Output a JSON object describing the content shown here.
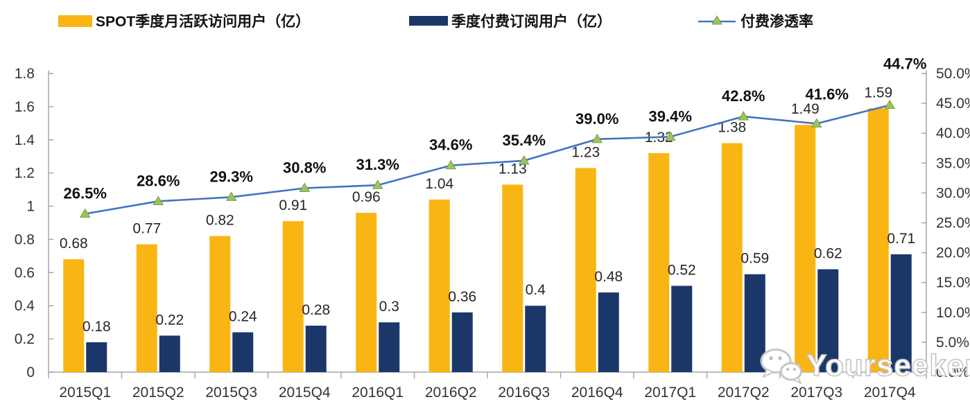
{
  "watermark": {
    "text": "Yourseeker",
    "icon": "wechat-icon"
  },
  "chart_data": {
    "type": "combo-bar-line",
    "title": "",
    "grid": false,
    "legend_position": "top",
    "categories": [
      "2015Q1",
      "2015Q2",
      "2015Q3",
      "2015Q4",
      "2016Q1",
      "2016Q2",
      "2016Q3",
      "2016Q4",
      "2017Q1",
      "2017Q2",
      "2017Q3",
      "2017Q4"
    ],
    "series": [
      {
        "name": "SPOT季度月活跃访问用户（亿）",
        "type": "bar",
        "axis": "left",
        "color": "#F9B513",
        "values": [
          0.68,
          0.77,
          0.82,
          0.91,
          0.96,
          1.04,
          1.13,
          1.23,
          1.32,
          1.38,
          1.49,
          1.59
        ],
        "labels": [
          "0.68",
          "0.77",
          "0.82",
          "0.91",
          "0.96",
          "1.04",
          "1.13",
          "1.23",
          "1.32",
          "1.38",
          "1.49",
          "1.59"
        ]
      },
      {
        "name": "季度付费订阅用户（亿）",
        "type": "bar",
        "axis": "left",
        "color": "#1B3769",
        "values": [
          0.18,
          0.22,
          0.24,
          0.28,
          0.3,
          0.36,
          0.4,
          0.48,
          0.52,
          0.59,
          0.62,
          0.71
        ],
        "labels": [
          "0.18",
          "0.22",
          "0.24",
          "0.28",
          "0.3",
          "0.36",
          "0.4",
          "0.48",
          "0.52",
          "0.59",
          "0.62",
          "0.71"
        ]
      },
      {
        "name": "付费渗透率",
        "type": "line",
        "axis": "right",
        "color": "#4472C4",
        "marker": "triangle",
        "marker_color": "#9DC35E",
        "values": [
          26.5,
          28.6,
          29.3,
          30.8,
          31.3,
          34.6,
          35.4,
          39.0,
          39.4,
          42.8,
          41.6,
          44.7
        ],
        "labels": [
          "26.5%",
          "28.6%",
          "29.3%",
          "30.8%",
          "31.3%",
          "34.6%",
          "35.4%",
          "39.0%",
          "39.4%",
          "42.8%",
          "41.6%",
          "44.7%"
        ]
      }
    ],
    "left_axis": {
      "min": 0,
      "max": 1.8,
      "ticks": [
        "0",
        "0.2",
        "0.4",
        "0.6",
        "0.8",
        "1",
        "1.2",
        "1.4",
        "1.6",
        "1.8"
      ]
    },
    "right_axis": {
      "min": 0,
      "max": 50,
      "ticks": [
        "0.0%",
        "5.0%",
        "10.0%",
        "15.0%",
        "20.0%",
        "25.0%",
        "30.0%",
        "35.0%",
        "40.0%",
        "45.0%",
        "50.0%"
      ]
    }
  }
}
